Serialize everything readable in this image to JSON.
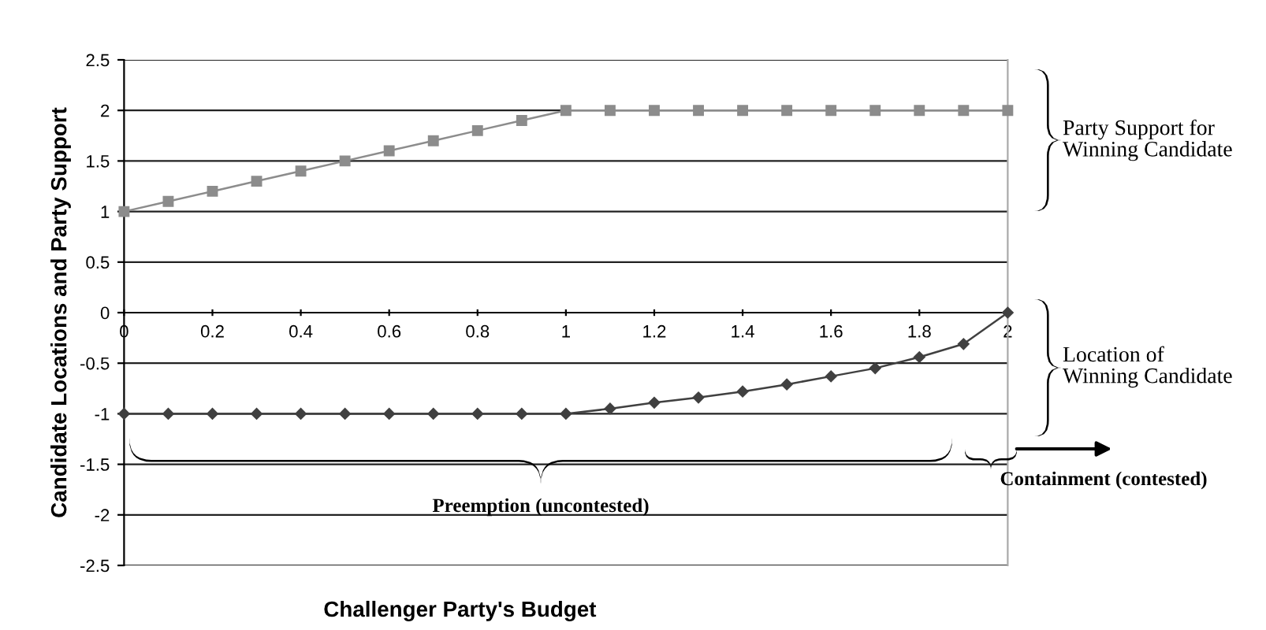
{
  "chart_data": {
    "type": "line",
    "xlabel": "Challenger Party's Budget",
    "ylabel": "Candidate Locations and Party Support",
    "x": [
      0,
      0.1,
      0.2,
      0.3,
      0.4,
      0.5,
      0.6,
      0.7,
      0.8,
      0.9,
      1,
      1.1,
      1.2,
      1.3,
      1.4,
      1.5,
      1.6,
      1.7,
      1.8,
      1.9,
      2
    ],
    "series": [
      {
        "color": "#8c8c8c",
        "marker": "square",
        "values": [
          1,
          1.1,
          1.2,
          1.3,
          1.4,
          1.5,
          1.6,
          1.7,
          1.8,
          1.9,
          2,
          2,
          2,
          2,
          2,
          2,
          2,
          2,
          2,
          2,
          2
        ]
      },
      {
        "color": "#404040",
        "marker": "diamond",
        "values": [
          -1,
          -1,
          -1,
          -1,
          -1,
          -1,
          -1,
          -1,
          -1,
          -1,
          -1,
          -0.95,
          -0.89,
          -0.84,
          -0.78,
          -0.71,
          -0.63,
          -0.55,
          -0.44,
          -0.31,
          0
        ]
      }
    ],
    "xlim": [
      0,
      2
    ],
    "xticks": [
      0,
      0.2,
      0.4,
      0.6,
      0.8,
      1,
      1.2,
      1.4,
      1.6,
      1.8,
      2
    ],
    "ylim": [
      -2.5,
      2.5
    ],
    "yticks": [
      -2.5,
      -2,
      -1.5,
      -1,
      -0.5,
      0,
      0.5,
      1,
      1.5,
      2,
      2.5
    ],
    "grid": "y",
    "annotations": [
      "Party Support for\nWinning Candidate",
      "Location of\nWinning Candidate",
      "Preemption (uncontested)",
      "Containment (contested)"
    ]
  }
}
